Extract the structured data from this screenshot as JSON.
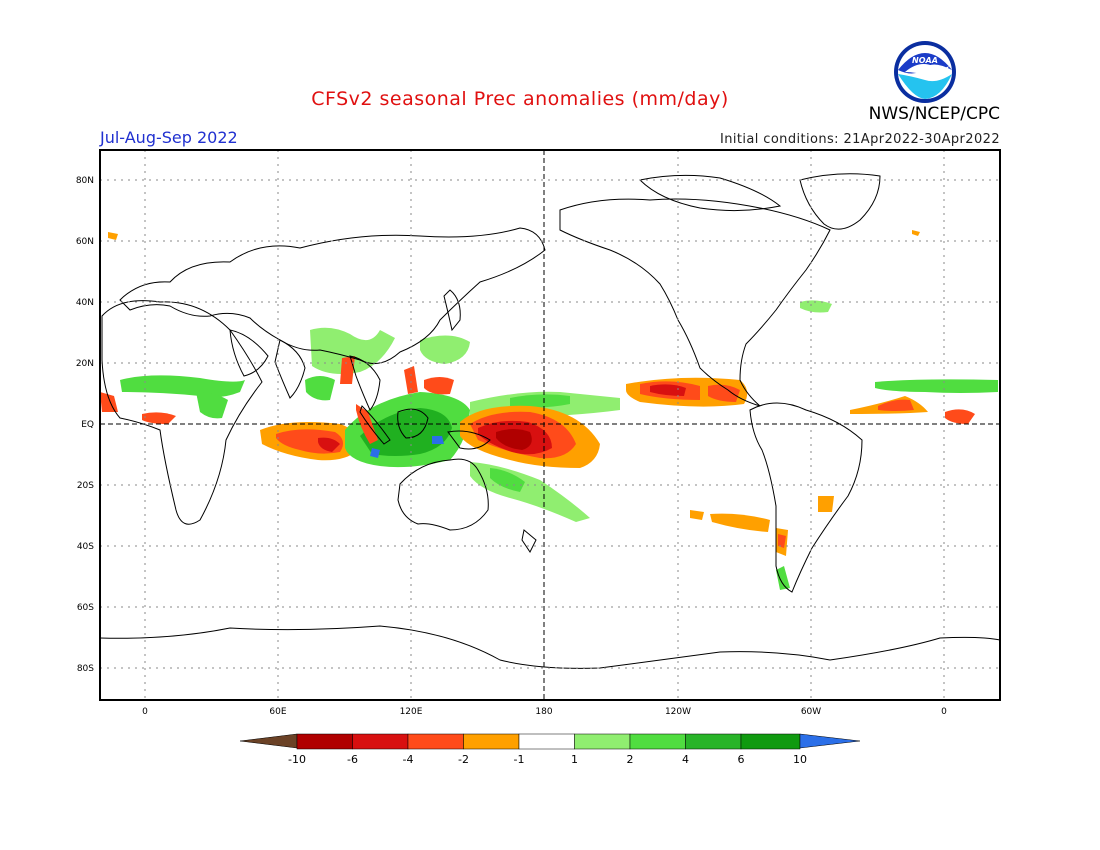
{
  "header": {
    "title": "CFSv2 seasonal Prec anomalies (mm/day)",
    "season": "Jul-Aug-Sep 2022",
    "initial_conditions": "Initial conditions: 21Apr2022-30Apr2022",
    "agency": "NWS/NCEP/CPC",
    "logo_text": "NOAA"
  },
  "map": {
    "lat_labels": [
      "80N",
      "60N",
      "40N",
      "20N",
      "EQ",
      "20S",
      "40S",
      "60S",
      "80S"
    ],
    "lat_values": [
      80,
      60,
      40,
      20,
      0,
      -20,
      -40,
      -60,
      -80
    ],
    "lon_labels": [
      "0",
      "60E",
      "120E",
      "180",
      "120W",
      "60W",
      "0"
    ],
    "lon_values": [
      0,
      60,
      120,
      180,
      240,
      300,
      360
    ],
    "lon_range": [
      -20,
      380
    ],
    "lat_range": [
      -90,
      90
    ],
    "grid": "dotted",
    "reference_lines": [
      "Equator",
      "180"
    ]
  },
  "legend": {
    "labels": [
      "-10",
      "-6",
      "-4",
      "-2",
      "-1",
      "1",
      "2",
      "4",
      "6",
      "10"
    ],
    "colors": [
      "#6b4226",
      "#b00000",
      "#d81010",
      "#ff4b1a",
      "#ffa000",
      "#ffffff",
      "#90ee70",
      "#50dd40",
      "#28b428",
      "#109a10",
      "#2b6fe8"
    ]
  },
  "anomalies": {
    "legend_colors": {
      "strong_dry": "#b00000",
      "dry": "#e02010",
      "moderate_dry": "#ff4b1a",
      "weak_dry": "#ffa000",
      "weak_wet": "#90ee70",
      "wet": "#50dd40",
      "strong_wet": "#20b020",
      "very_wet": "#2b6fe8"
    }
  }
}
